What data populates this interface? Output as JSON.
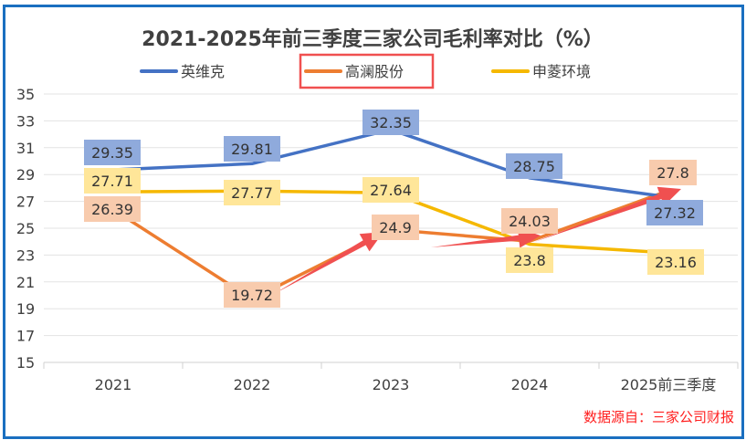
{
  "chart_data": {
    "type": "line",
    "title": "2021-2025年前三季度三家公司毛利率对比（%）",
    "categories": [
      "2021",
      "2022",
      "2023",
      "2024",
      "2025前三季度"
    ],
    "ylim": [
      15,
      35
    ],
    "yticks": [
      "15",
      "17",
      "19",
      "21",
      "23",
      "25",
      "27",
      "29",
      "31",
      "33",
      "35"
    ],
    "grid": true,
    "legend_position": "top",
    "series": [
      {
        "name": "英维克",
        "color": "#4472c4",
        "label_bg": "#8faadc",
        "values": [
          29.35,
          29.81,
          32.35,
          28.75,
          27.32
        ],
        "labels": [
          "29.35",
          "29.81",
          "32.35",
          "28.75",
          "27.32"
        ]
      },
      {
        "name": "高澜股份",
        "color": "#ed7d31",
        "label_bg": "#f8cbad",
        "values": [
          26.39,
          19.72,
          24.9,
          24.03,
          27.8
        ],
        "labels": [
          "26.39",
          "19.72",
          "24.9",
          "24.03",
          "27.8"
        ]
      },
      {
        "name": "申菱环境",
        "color": "#f5b800",
        "label_bg": "#ffe699",
        "values": [
          27.71,
          27.77,
          27.64,
          23.8,
          23.16
        ],
        "labels": [
          "27.71",
          "27.77",
          "27.64",
          "23.8",
          "23.16"
        ]
      }
    ],
    "highlight_color": "#f05050",
    "source_note": "数据源自：三家公司财报"
  }
}
